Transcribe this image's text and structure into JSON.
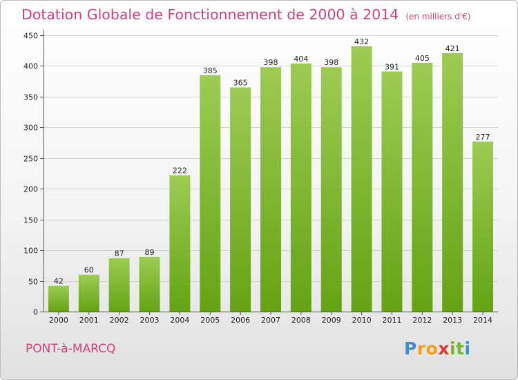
{
  "title": "Dotation Globale de Fonctionnement de 2000 à 2014",
  "unit": "(en milliers d'€)",
  "town": "PONT-à-MARCQ",
  "logo": {
    "letters": [
      "P",
      "r",
      "o",
      "x",
      "i",
      "t",
      "i"
    ],
    "colors": [
      "#3a8fd0",
      "#f0a020",
      "#f0a020",
      "#d83a3a",
      "#79b52d",
      "#79b52d",
      "#3a8fd0"
    ]
  },
  "colors": {
    "bar_light": "#9ccc52",
    "bar_dark": "#64a313",
    "title": "#d2417a"
  },
  "chart_data": {
    "type": "bar",
    "categories": [
      "2000",
      "2001",
      "2002",
      "2003",
      "2004",
      "2005",
      "2006",
      "2007",
      "2008",
      "2009",
      "2010",
      "2011",
      "2012",
      "2013",
      "2014"
    ],
    "values": [
      42,
      60,
      87,
      89,
      222,
      385,
      365,
      398,
      404,
      398,
      432,
      391,
      405,
      421,
      277
    ],
    "data_labels": [
      "42",
      "60",
      "87",
      "89",
      "222",
      "385",
      "365",
      "398",
      "404",
      "398",
      "432",
      "391",
      "405",
      "421",
      "277"
    ],
    "yticks": [
      "0",
      "50",
      "100",
      "150",
      "200",
      "250",
      "300",
      "350",
      "400",
      "450"
    ],
    "ylim": [
      0,
      450
    ],
    "grid": true,
    "xlabel": "",
    "ylabel": ""
  }
}
